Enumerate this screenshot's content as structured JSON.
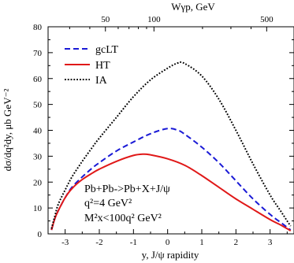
{
  "chart_data": {
    "type": "line",
    "xlabel": "y, J/ψ rapidity",
    "ylabel": "dσ/dq²dy, μb GeV⁻²",
    "top_axis_label": "Wγp, GeV",
    "xlim": [
      -3.5,
      3.7
    ],
    "ylim": [
      0,
      80
    ],
    "x_ticks": [
      "-3",
      "-2",
      "-1",
      "0",
      "1",
      "2",
      "3"
    ],
    "x_tick_values": [
      -3,
      -2,
      -1,
      0,
      1,
      2,
      3
    ],
    "y_ticks": [
      "0",
      "10",
      "20",
      "30",
      "40",
      "50",
      "60",
      "70",
      "80"
    ],
    "y_tick_values": [
      0,
      10,
      20,
      30,
      40,
      50,
      60,
      70,
      80
    ],
    "top_ticks": [
      "50",
      "100",
      "500"
    ],
    "top_tick_values": [
      50,
      100,
      500
    ],
    "grid": false,
    "legend_position": "top-left",
    "annotations": [
      "Pb+Pb->Pb+X+J/ψ",
      "q²=4 GeV²",
      "M²x<100q² GeV²"
    ],
    "series": [
      {
        "name": "gcLT",
        "color": "#1a1ad6",
        "style": "dashed",
        "x": [
          -3.4,
          -3.3,
          -3.2,
          -3.0,
          -2.8,
          -2.5,
          -2.2,
          -2.0,
          -1.5,
          -1.0,
          -0.5,
          0.0,
          0.3,
          0.5,
          1.0,
          1.5,
          2.0,
          2.5,
          3.0,
          3.3,
          3.5,
          3.6
        ],
        "y": [
          1.5,
          6,
          9,
          14,
          18,
          22,
          25.5,
          27.5,
          32,
          35.5,
          38.7,
          40.7,
          40.0,
          38.5,
          33.5,
          27.5,
          20.5,
          13.5,
          7.5,
          4.5,
          2.5,
          1.5
        ]
      },
      {
        "name": "HT",
        "color": "#e01818",
        "style": "solid",
        "x": [
          -3.4,
          -3.3,
          -3.2,
          -3.0,
          -2.8,
          -2.5,
          -2.2,
          -2.0,
          -1.5,
          -1.0,
          -0.7,
          -0.5,
          0.0,
          0.5,
          1.0,
          1.5,
          2.0,
          2.5,
          3.0,
          3.3,
          3.5,
          3.6
        ],
        "y": [
          1.5,
          6,
          9,
          14,
          17.5,
          21,
          23.5,
          25,
          28,
          30.3,
          30.8,
          30.5,
          29,
          26.5,
          22.5,
          18,
          13.5,
          9.5,
          5.5,
          3.5,
          2,
          1.2
        ]
      },
      {
        "name": "IA",
        "color": "#000000",
        "style": "dotted",
        "x": [
          -3.4,
          -3.3,
          -3.2,
          -3.0,
          -2.8,
          -2.5,
          -2.2,
          -2.0,
          -1.5,
          -1.0,
          -0.5,
          0.0,
          0.3,
          0.5,
          1.0,
          1.5,
          2.0,
          2.5,
          3.0,
          3.3,
          3.5,
          3.6
        ],
        "y": [
          2,
          7,
          11.5,
          17,
          22,
          28,
          33.5,
          37,
          45,
          53,
          59.5,
          64,
          66,
          65.8,
          61,
          52,
          40,
          27,
          15,
          9,
          5,
          3
        ]
      }
    ]
  }
}
